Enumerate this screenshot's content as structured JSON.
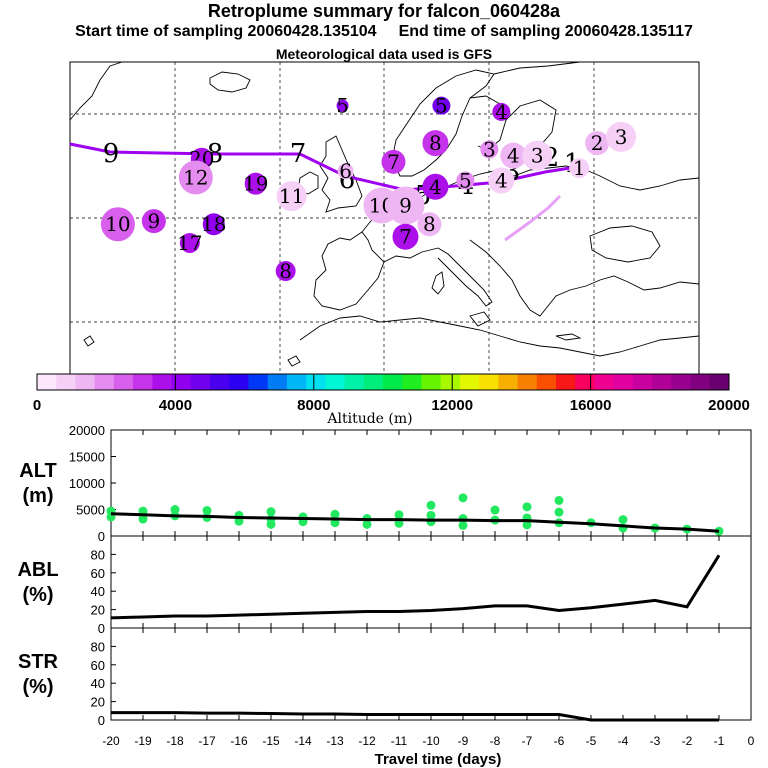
{
  "header": {
    "title": "Retroplume summary for falcon_060428a",
    "start_label": "Start time of sampling 20060428.135104",
    "end_label": "End time of sampling 20060428.135117",
    "met_label": "Meteorological data used is GFS"
  },
  "chart_data": [
    {
      "type": "map",
      "description_text": "Retroplume cluster positions with day numbers",
      "colorbar": {
        "label": "Altitude (m)",
        "ticks": [
          "0",
          "4000",
          "8000",
          "12000",
          "16000",
          "20000"
        ],
        "range": [
          0,
          20000
        ]
      },
      "trajectory_day_labels": [
        "9",
        "8",
        "7",
        "6",
        "5",
        "4",
        "3",
        "2",
        "1"
      ],
      "clusters": [
        {
          "label": "10",
          "lon": -37,
          "lat": 44,
          "alt": 2600,
          "r": 17
        },
        {
          "label": "9",
          "lon": -31,
          "lat": 44.5,
          "alt": 2800,
          "r": 12
        },
        {
          "label": "20",
          "lon": -23,
          "lat": 54.5,
          "alt": 3700,
          "r": 11
        },
        {
          "label": "12",
          "lon": -24,
          "lat": 51.5,
          "alt": 1700,
          "r": 17
        },
        {
          "label": "19",
          "lon": -14,
          "lat": 50.5,
          "alt": 3700,
          "r": 11
        },
        {
          "label": "11",
          "lon": -8,
          "lat": 48.5,
          "alt": 1100,
          "r": 15
        },
        {
          "label": "18",
          "lon": -21,
          "lat": 44,
          "alt": 3900,
          "r": 11
        },
        {
          "label": "17",
          "lon": -25,
          "lat": 41,
          "alt": 3800,
          "r": 10
        },
        {
          "label": "8",
          "lon": -9,
          "lat": 36.5,
          "alt": 3600,
          "r": 10
        },
        {
          "label": "5",
          "lon": 0.5,
          "lat": 63,
          "alt": 4200,
          "r": 6
        },
        {
          "label": "5",
          "lon": 17,
          "lat": 63,
          "alt": 4800,
          "r": 9
        },
        {
          "label": "6",
          "lon": 1,
          "lat": 52.5,
          "alt": 1300,
          "r": 8
        },
        {
          "label": "7",
          "lon": 9,
          "lat": 54,
          "alt": 2900,
          "r": 12
        },
        {
          "label": "8",
          "lon": 16,
          "lat": 57,
          "alt": 3000,
          "r": 13
        },
        {
          "label": "4",
          "lon": 16,
          "lat": 50,
          "alt": 3400,
          "r": 13
        },
        {
          "label": "5",
          "lon": 21,
          "lat": 51,
          "alt": 1800,
          "r": 9
        },
        {
          "label": "4",
          "lon": 27,
          "lat": 51,
          "alt": 1000,
          "r": 13
        },
        {
          "label": "10",
          "lon": 7,
          "lat": 47,
          "alt": 1500,
          "r": 18
        },
        {
          "label": "9",
          "lon": 11,
          "lat": 47,
          "alt": 1400,
          "r": 19
        },
        {
          "label": "7",
          "lon": 11,
          "lat": 42,
          "alt": 3500,
          "r": 13
        },
        {
          "label": "8",
          "lon": 15,
          "lat": 44,
          "alt": 1200,
          "r": 12
        },
        {
          "label": "4",
          "lon": 27,
          "lat": 62,
          "alt": 3600,
          "r": 9
        },
        {
          "label": "3",
          "lon": 25,
          "lat": 56,
          "alt": 2100,
          "r": 9
        },
        {
          "label": "4",
          "lon": 29,
          "lat": 55,
          "alt": 1400,
          "r": 13
        },
        {
          "label": "3",
          "lon": 33,
          "lat": 55,
          "alt": 1100,
          "r": 15
        },
        {
          "label": "2",
          "lon": 43,
          "lat": 57,
          "alt": 1300,
          "r": 12
        },
        {
          "label": "3",
          "lon": 47,
          "lat": 58,
          "alt": 1100,
          "r": 15
        },
        {
          "label": "1",
          "lon": 40,
          "lat": 53,
          "alt": 800,
          "r": 10
        }
      ]
    },
    {
      "type": "scatter",
      "ylabel": "ALT\n(m)",
      "yticks": [
        "20000",
        "15000",
        "10000",
        "5000",
        "0"
      ],
      "ylim": [
        0,
        20000
      ],
      "line_days": [
        -20,
        -19,
        -18,
        -17,
        -16,
        -15,
        -14,
        -13,
        -12,
        -11,
        -10,
        -9,
        -8,
        -7,
        -6,
        -5,
        -4,
        -3,
        -2,
        -1
      ],
      "line_values": [
        4200,
        4000,
        3800,
        3700,
        3500,
        3400,
        3300,
        3200,
        3100,
        3100,
        3000,
        3000,
        2900,
        2900,
        2600,
        2300,
        1900,
        1500,
        1300,
        900
      ],
      "points": [
        {
          "day": -20,
          "alt": 3600
        },
        {
          "day": -20,
          "alt": 4700
        },
        {
          "day": -19,
          "alt": 4700
        },
        {
          "day": -19,
          "alt": 3200
        },
        {
          "day": -18,
          "alt": 5000
        },
        {
          "day": -18,
          "alt": 3800
        },
        {
          "day": -17,
          "alt": 4800
        },
        {
          "day": -17,
          "alt": 3500
        },
        {
          "day": -16,
          "alt": 2800
        },
        {
          "day": -16,
          "alt": 3900
        },
        {
          "day": -15,
          "alt": 4600
        },
        {
          "day": -15,
          "alt": 3200
        },
        {
          "day": -15,
          "alt": 2200
        },
        {
          "day": -14,
          "alt": 3600
        },
        {
          "day": -14,
          "alt": 2700
        },
        {
          "day": -13,
          "alt": 4100
        },
        {
          "day": -13,
          "alt": 2500
        },
        {
          "day": -12,
          "alt": 3300
        },
        {
          "day": -12,
          "alt": 2200
        },
        {
          "day": -11,
          "alt": 4000
        },
        {
          "day": -11,
          "alt": 2400
        },
        {
          "day": -10,
          "alt": 5800
        },
        {
          "day": -10,
          "alt": 2700
        },
        {
          "day": -10,
          "alt": 3900
        },
        {
          "day": -9,
          "alt": 7200
        },
        {
          "day": -9,
          "alt": 2000
        },
        {
          "day": -9,
          "alt": 3300
        },
        {
          "day": -8,
          "alt": 4900
        },
        {
          "day": -8,
          "alt": 3000
        },
        {
          "day": -7,
          "alt": 5500
        },
        {
          "day": -7,
          "alt": 3400
        },
        {
          "day": -7,
          "alt": 2100
        },
        {
          "day": -6,
          "alt": 6700
        },
        {
          "day": -6,
          "alt": 4500
        },
        {
          "day": -6,
          "alt": 2500
        },
        {
          "day": -5,
          "alt": 2500
        },
        {
          "day": -4,
          "alt": 3100
        },
        {
          "day": -4,
          "alt": 1500
        },
        {
          "day": -3,
          "alt": 1500
        },
        {
          "day": -2,
          "alt": 1300
        },
        {
          "day": -1,
          "alt": 900
        }
      ]
    },
    {
      "type": "line",
      "ylabel": "ABL\n(%)",
      "yticks": [
        "80",
        "60",
        "40",
        "20",
        "0"
      ],
      "ylim": [
        0,
        100
      ],
      "days": [
        -20,
        -19,
        -18,
        -17,
        -16,
        -15,
        -14,
        -13,
        -12,
        -11,
        -10,
        -9,
        -8,
        -7,
        -6,
        -5,
        -4,
        -3,
        -2,
        -1
      ],
      "values": [
        11,
        12,
        13,
        13,
        14,
        15,
        16,
        17,
        18,
        18,
        19,
        21,
        24,
        24,
        19,
        22,
        26,
        30,
        23,
        79
      ]
    },
    {
      "type": "line",
      "ylabel": "STR\n(%)",
      "yticks": [
        "80",
        "60",
        "40",
        "20",
        "0"
      ],
      "ylim": [
        0,
        100
      ],
      "days": [
        -20,
        -19,
        -18,
        -17,
        -16,
        -15,
        -14,
        -13,
        -12,
        -11,
        -10,
        -9,
        -8,
        -7,
        -6,
        -5,
        -4,
        -3,
        -2,
        -1
      ],
      "values": [
        8,
        8,
        8,
        7.5,
        7.5,
        7,
        6.5,
        6.5,
        6,
        6,
        6,
        6,
        6,
        6,
        6,
        0,
        0,
        0,
        0,
        0
      ]
    }
  ],
  "x_axis": {
    "label": "Travel time (days)",
    "ticks": [
      "-20",
      "-19",
      "-18",
      "-17",
      "-16",
      "-15",
      "-14",
      "-13",
      "-12",
      "-11",
      "-10",
      "-9",
      "-8",
      "-7",
      "-6",
      "-5",
      "-4",
      "-3",
      "-2",
      "-1",
      "0"
    ]
  },
  "colors": {
    "trajectory": "#a000f0",
    "scatter": "#22e860",
    "line": "#000000"
  }
}
